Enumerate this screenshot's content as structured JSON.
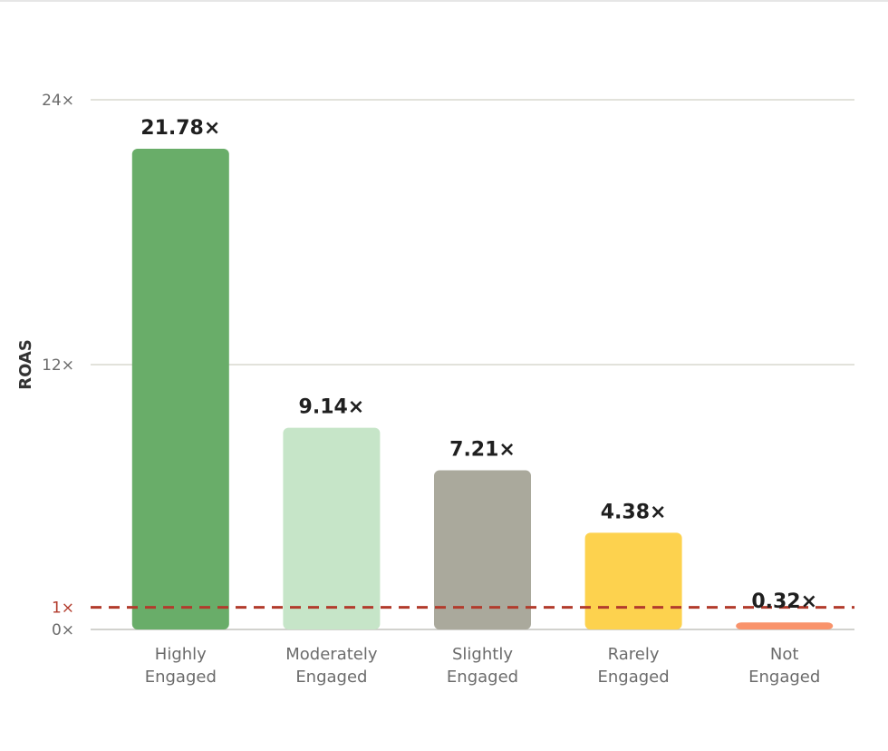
{
  "chart_data": {
    "type": "bar",
    "ylabel": "ROAS",
    "ylim": [
      0,
      24
    ],
    "grid": true,
    "y_ticks": [
      {
        "value": 0,
        "label": "0×"
      },
      {
        "value": 12,
        "label": "12×"
      },
      {
        "value": 24,
        "label": "24×"
      }
    ],
    "reference_line": {
      "value": 1,
      "label": "1×",
      "style": "dashed",
      "color": "#b23b2c"
    },
    "categories": [
      [
        "Highly",
        "Engaged"
      ],
      [
        "Moderately",
        "Engaged"
      ],
      [
        "Slightly",
        "Engaged"
      ],
      [
        "Rarely",
        "Engaged"
      ],
      [
        "Not",
        "Engaged"
      ]
    ],
    "values": [
      21.78,
      9.14,
      7.21,
      4.38,
      0.32
    ],
    "value_labels": [
      "21.78×",
      "9.14×",
      "7.21×",
      "4.38×",
      "0.32×"
    ],
    "colors": [
      "#69ad69",
      "#c6e5c8",
      "#aaa99c",
      "#fdd24e",
      "#f9936b"
    ]
  }
}
